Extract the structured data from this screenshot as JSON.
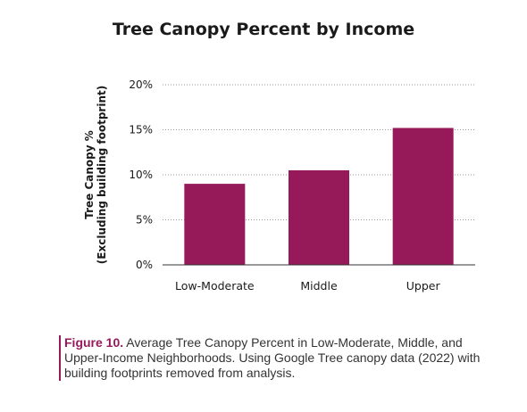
{
  "chart_data": {
    "type": "bar",
    "title": "Tree Canopy Percent by Income",
    "ylabel": [
      "Tree Canopy %",
      "(Excluding building footprint)"
    ],
    "xlabel": "",
    "categories": [
      "Low-Moderate",
      "Middle",
      "Upper"
    ],
    "values": [
      9,
      10.5,
      15.2
    ],
    "ylim": [
      0,
      20
    ],
    "yticks": [
      0,
      5,
      10,
      15,
      20
    ],
    "ytick_labels": [
      "0%",
      "5%",
      "10%",
      "15%",
      "20%"
    ],
    "grid": "horizontal dotted",
    "legend": "none",
    "bar_color": "#96195a"
  },
  "caption": {
    "label": "Figure 10.",
    "text": " Average Tree Canopy Percent in Low-Moderate, Middle, and Upper-Income Neighborhoods. Using Google Tree canopy data (2022) with building footprints removed from analysis."
  }
}
